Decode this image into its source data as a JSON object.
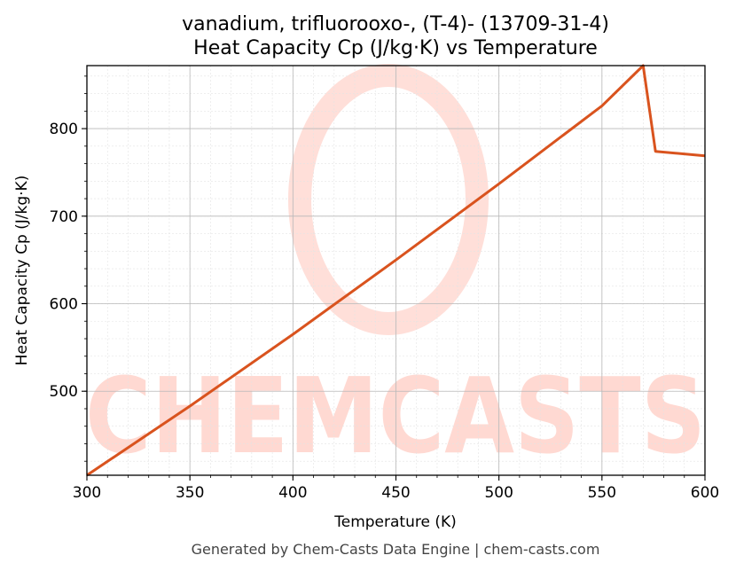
{
  "chart_data": {
    "type": "line",
    "title": "vanadium, trifluorooxo-, (T-4)- (13709-31-4)",
    "subtitle": "Heat Capacity Cp (J/kg·K) vs Temperature",
    "xlabel": "Temperature (K)",
    "ylabel": "Heat Capacity Cp (J/kg·K)",
    "xlim": [
      300,
      600
    ],
    "ylim": [
      404,
      872
    ],
    "x_ticks": [
      300,
      350,
      400,
      450,
      500,
      550,
      600
    ],
    "y_ticks": [
      500,
      600,
      700,
      800
    ],
    "grid": true,
    "series": [
      {
        "color": "#d9531e",
        "x": [
          300,
          350,
          400,
          450,
          500,
          550,
          570,
          576,
          600
        ],
        "y": [
          404,
          483,
          565,
          650,
          737,
          826,
          872,
          774,
          769
        ]
      }
    ]
  },
  "watermark": {
    "text": "CHEMCASTS",
    "color": "#ffd9d2"
  },
  "footer": "Generated by Chem-Casts Data Engine | chem-casts.com"
}
